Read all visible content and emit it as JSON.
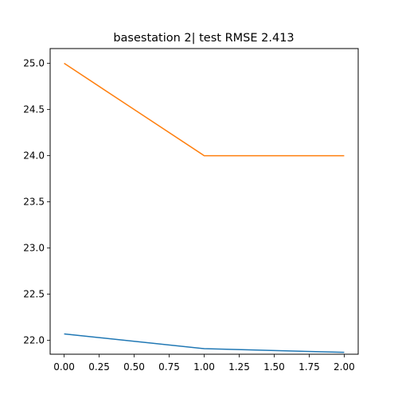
{
  "chart_data": {
    "type": "line",
    "title": "basestation 2| test RMSE 2.413",
    "xlabel": "",
    "ylabel": "",
    "xlim": [
      -0.1,
      2.1
    ],
    "ylim": [
      21.85,
      25.16
    ],
    "grid": false,
    "x_ticks": [
      "0.00",
      "0.25",
      "0.50",
      "0.75",
      "1.00",
      "1.25",
      "1.50",
      "1.75",
      "2.00"
    ],
    "y_ticks": [
      "22.0",
      "22.5",
      "23.0",
      "23.5",
      "24.0",
      "24.5",
      "25.0"
    ],
    "series": [
      {
        "x": [
          0,
          1,
          2
        ],
        "values": [
          22.07,
          21.91,
          21.87
        ],
        "color": "#1f77b4"
      },
      {
        "x": [
          0,
          1,
          2
        ],
        "values": [
          25.0,
          24.0,
          24.0
        ],
        "color": "#ff7f0e"
      }
    ]
  }
}
